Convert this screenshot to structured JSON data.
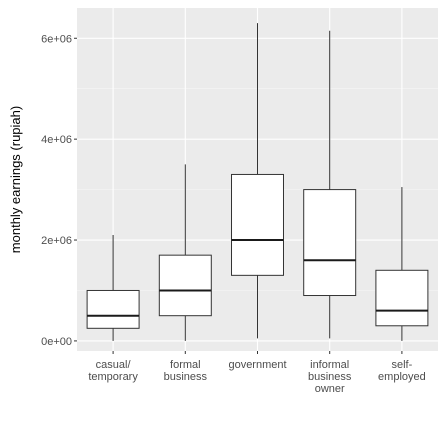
{
  "chart_data": {
    "type": "boxplot",
    "title": "",
    "xlabel": "",
    "ylabel": "monthly earnings (rupiah)",
    "ylim": [
      -200000,
      6600000
    ],
    "yticks": [
      0,
      2000000,
      4000000,
      6000000
    ],
    "ytick_labels": [
      "0e+00",
      "2e+06",
      "4e+06",
      "6e+06"
    ],
    "grid": true,
    "categories": [
      [
        "casual/",
        "temporary"
      ],
      [
        "formal",
        "business"
      ],
      [
        "government"
      ],
      [
        "informal",
        "business",
        "owner"
      ],
      [
        "self-",
        "employed"
      ]
    ],
    "boxes": [
      {
        "whisker_low": 0,
        "q1": 250000,
        "median": 500000,
        "q3": 1000000,
        "whisker_high": 2100000
      },
      {
        "whisker_low": 0,
        "q1": 500000,
        "median": 1000000,
        "q3": 1700000,
        "whisker_high": 3500000
      },
      {
        "whisker_low": 50000,
        "q1": 1300000,
        "median": 2000000,
        "q3": 3300000,
        "whisker_high": 6300000
      },
      {
        "whisker_low": 50000,
        "q1": 900000,
        "median": 1600000,
        "q3": 3000000,
        "whisker_high": 6150000
      },
      {
        "whisker_low": 0,
        "q1": 300000,
        "median": 600000,
        "q3": 1400000,
        "whisker_high": 3050000
      }
    ],
    "colors": {
      "panel": "#ebebeb",
      "grid_major": "#ffffff",
      "grid_minor": "#f5f5f5",
      "box_fill": "#ffffff",
      "box_stroke": "#333333",
      "tick_text": "#4d4d4d"
    }
  }
}
